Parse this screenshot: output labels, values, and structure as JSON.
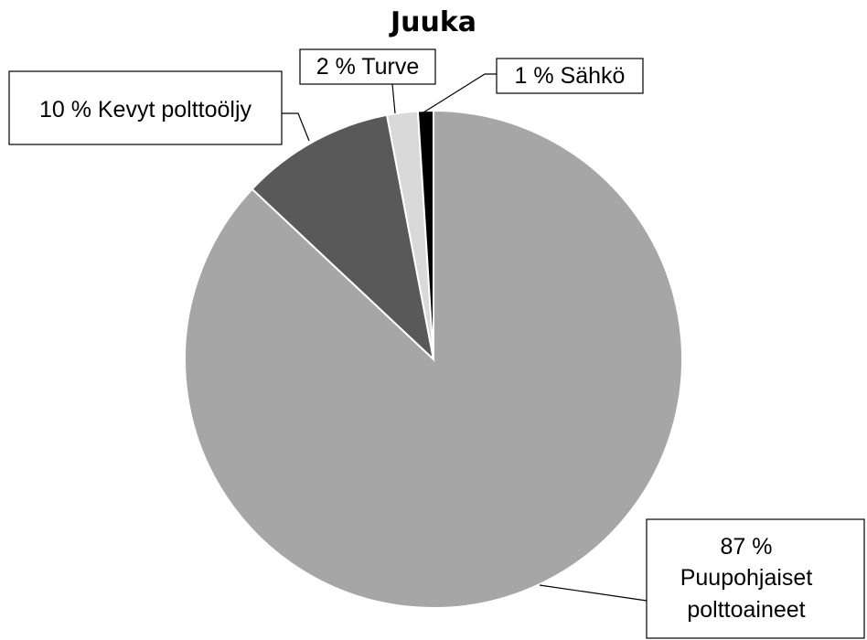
{
  "chart_data": {
    "type": "pie",
    "title": "Juuka",
    "slices": [
      {
        "label_lines": [
          "87 %",
          "Puupohjaiset",
          "polttoaineet"
        ],
        "value": 87,
        "color": "#a6a6a6"
      },
      {
        "label_lines": [
          "10 % Kevyt polttoöljy"
        ],
        "value": 10,
        "color": "#595959"
      },
      {
        "label_lines": [
          "2 % Turve"
        ],
        "value": 2,
        "color": "#d9d9d9"
      },
      {
        "label_lines": [
          "1 % Sähkö"
        ],
        "value": 1,
        "color": "#000000"
      }
    ]
  }
}
